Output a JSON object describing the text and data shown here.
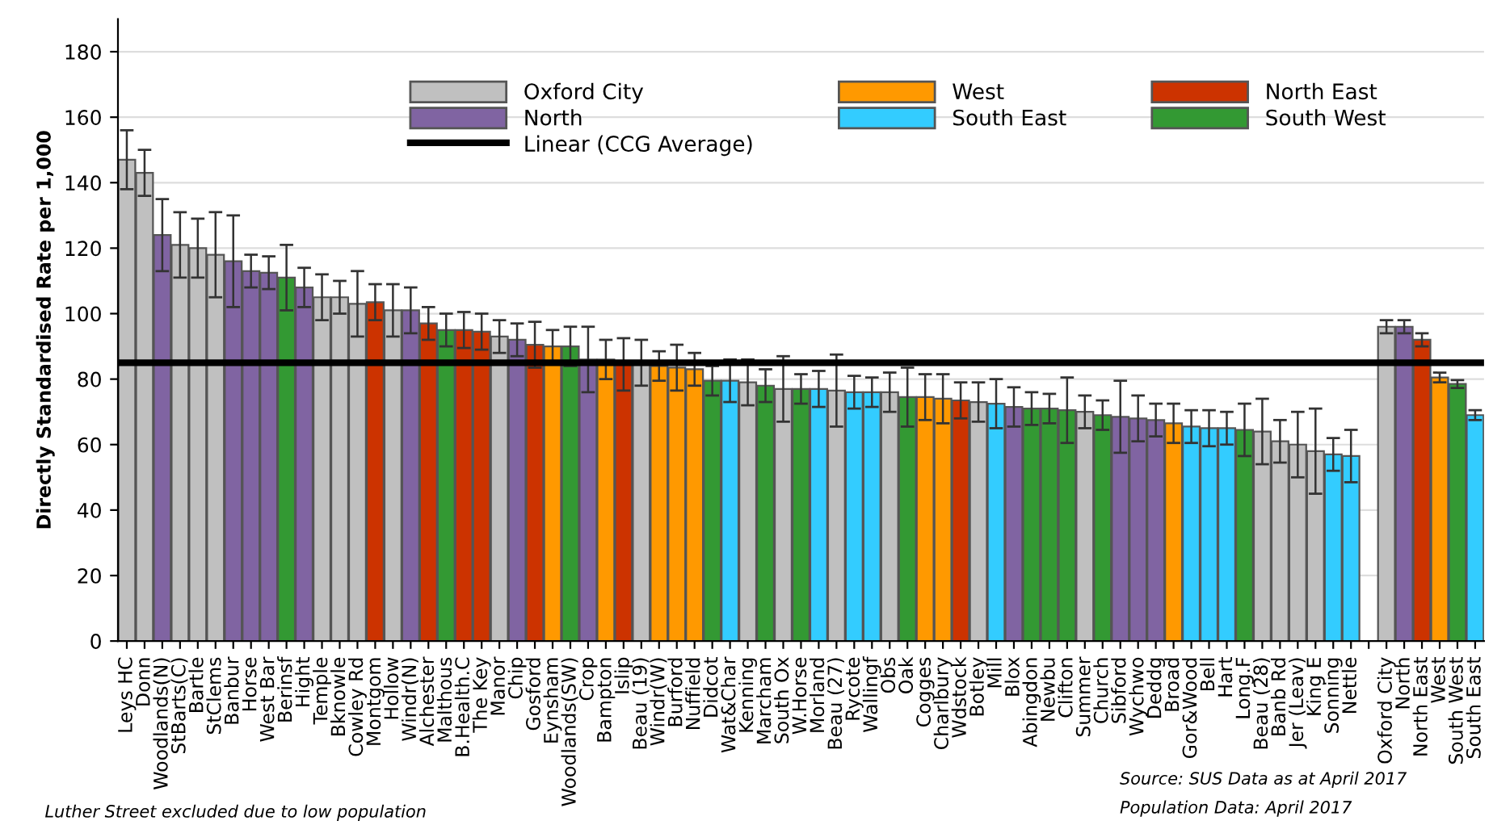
{
  "chart_data": {
    "type": "bar",
    "ylabel": "Directly Standardised Rate per 1,000",
    "categories": [
      "Leys HC",
      "Donn",
      "Woodlands(N)",
      "StBarts(C)",
      "Bartle",
      "StClems",
      "Banbur",
      "Horse",
      "West Bar",
      "Berinsf",
      "Hight",
      "Temple",
      "Bknowle",
      "Cowley Rd",
      "Montgom",
      "Hollow",
      "Windr(N)",
      "Alchester",
      "Malthous",
      "B.Health.C",
      "The Key",
      "Manor",
      "Chip",
      "Gosford",
      "Eynsham",
      "Woodlands(SW)",
      "Crop",
      "Bampton",
      "Islip",
      "Beau (19)",
      "Windr(W)",
      "Burford",
      "Nuffield",
      "Didcot",
      "Wat&Char",
      "Kenning",
      "Marcham",
      "South Ox",
      "W.Horse",
      "Morland",
      "Beau (27)",
      "Rycote",
      "Wallingf",
      "Obs",
      "Oak",
      "Cogges",
      "Charlbury",
      "Wdstock",
      "Botley",
      "Mill",
      "Blox",
      "Abingdon",
      "Newbu",
      "Clifton",
      "Summer",
      "Church",
      "Sibford",
      "Wychwo",
      "Deddg",
      "Broad",
      "Gor&Wood",
      "Bell",
      "Hart",
      "Long.F",
      "Beau (28)",
      "Banb Rd",
      "Jer (Leav)",
      "King E",
      "Sonning",
      "Nettle",
      null,
      "Oxford City",
      "North",
      "North East",
      "West",
      "South West",
      "South East"
    ],
    "series": [
      {
        "name": "Oxford City",
        "color": "#c0c0c0",
        "values": [
          147,
          143,
          null,
          121,
          120,
          118,
          null,
          null,
          null,
          null,
          null,
          105,
          105,
          103,
          null,
          101,
          null,
          null,
          null,
          null,
          null,
          93,
          null,
          null,
          null,
          null,
          null,
          null,
          null,
          85,
          null,
          null,
          null,
          null,
          null,
          79,
          null,
          77,
          null,
          null,
          76.5,
          null,
          null,
          76,
          null,
          null,
          null,
          null,
          73,
          null,
          null,
          null,
          null,
          null,
          70,
          null,
          null,
          null,
          null,
          null,
          null,
          null,
          null,
          null,
          64,
          61,
          60,
          58,
          null,
          null,
          null,
          96,
          null,
          null,
          null,
          null,
          null
        ],
        "errors": [
          9,
          7,
          null,
          10,
          9,
          13,
          null,
          null,
          null,
          null,
          null,
          7,
          5,
          10,
          null,
          8,
          null,
          null,
          null,
          null,
          null,
          5,
          null,
          null,
          null,
          null,
          null,
          null,
          null,
          7,
          null,
          null,
          null,
          null,
          null,
          7,
          null,
          10,
          null,
          null,
          11,
          null,
          null,
          6,
          null,
          null,
          null,
          null,
          6,
          null,
          null,
          null,
          null,
          null,
          5,
          null,
          null,
          null,
          null,
          null,
          null,
          null,
          null,
          null,
          10,
          6.5,
          10,
          13,
          null,
          null,
          null,
          2,
          null,
          null,
          null,
          null,
          null
        ]
      },
      {
        "name": "West",
        "color": "#ff9900",
        "values": [
          null,
          null,
          null,
          null,
          null,
          null,
          null,
          null,
          null,
          null,
          null,
          null,
          null,
          null,
          null,
          null,
          null,
          null,
          null,
          null,
          null,
          null,
          null,
          null,
          90,
          null,
          null,
          86,
          null,
          null,
          84,
          83.5,
          83,
          null,
          null,
          null,
          null,
          null,
          null,
          null,
          null,
          null,
          null,
          null,
          null,
          74.5,
          74,
          null,
          null,
          null,
          null,
          null,
          null,
          null,
          null,
          null,
          null,
          null,
          null,
          66.5,
          null,
          null,
          null,
          null,
          null,
          null,
          null,
          null,
          null,
          null,
          null,
          null,
          null,
          null,
          80.5,
          null,
          null
        ],
        "errors": [
          null,
          null,
          null,
          null,
          null,
          null,
          null,
          null,
          null,
          null,
          null,
          null,
          null,
          null,
          null,
          null,
          null,
          null,
          null,
          null,
          null,
          null,
          null,
          null,
          5,
          null,
          null,
          6,
          null,
          null,
          4.5,
          7,
          5,
          null,
          null,
          null,
          null,
          null,
          null,
          null,
          null,
          null,
          null,
          null,
          null,
          7,
          7.5,
          null,
          null,
          null,
          null,
          null,
          null,
          null,
          null,
          null,
          null,
          null,
          null,
          6,
          null,
          null,
          null,
          null,
          null,
          null,
          null,
          null,
          null,
          null,
          null,
          null,
          null,
          null,
          1.5,
          null,
          null
        ]
      },
      {
        "name": "North East",
        "color": "#cc3300",
        "values": [
          null,
          null,
          null,
          null,
          null,
          null,
          null,
          null,
          null,
          null,
          null,
          null,
          null,
          null,
          103.5,
          null,
          null,
          97,
          null,
          95,
          94.5,
          null,
          null,
          90.5,
          null,
          null,
          null,
          null,
          84.5,
          null,
          null,
          null,
          null,
          null,
          null,
          null,
          null,
          null,
          null,
          null,
          null,
          null,
          null,
          null,
          null,
          null,
          null,
          73.5,
          null,
          null,
          null,
          null,
          null,
          null,
          null,
          null,
          null,
          null,
          null,
          null,
          null,
          null,
          null,
          null,
          null,
          null,
          null,
          null,
          null,
          null,
          null,
          null,
          null,
          92,
          null,
          null,
          null
        ],
        "errors": [
          null,
          null,
          null,
          null,
          null,
          null,
          null,
          null,
          null,
          null,
          null,
          null,
          null,
          null,
          5.5,
          null,
          null,
          5,
          null,
          5.5,
          5.5,
          null,
          null,
          7,
          null,
          null,
          null,
          null,
          8,
          null,
          null,
          null,
          null,
          null,
          null,
          null,
          null,
          null,
          null,
          null,
          null,
          null,
          null,
          null,
          null,
          null,
          null,
          5.5,
          null,
          null,
          null,
          null,
          null,
          null,
          null,
          null,
          null,
          null,
          null,
          null,
          null,
          null,
          null,
          null,
          null,
          null,
          null,
          null,
          null,
          null,
          null,
          null,
          null,
          2,
          null,
          null,
          null
        ]
      },
      {
        "name": "North",
        "color": "#8064a2",
        "values": [
          null,
          null,
          124,
          null,
          null,
          null,
          116,
          113,
          112.5,
          null,
          108,
          null,
          null,
          null,
          null,
          null,
          101,
          null,
          null,
          null,
          null,
          null,
          92,
          null,
          null,
          null,
          86,
          null,
          null,
          null,
          null,
          null,
          null,
          null,
          null,
          null,
          null,
          null,
          null,
          null,
          null,
          null,
          null,
          null,
          null,
          null,
          null,
          null,
          null,
          null,
          71.5,
          null,
          null,
          null,
          null,
          null,
          68.5,
          68,
          67.5,
          null,
          null,
          null,
          null,
          null,
          null,
          null,
          null,
          null,
          null,
          null,
          null,
          null,
          96,
          null,
          null,
          null,
          null
        ],
        "errors": [
          null,
          null,
          11,
          null,
          null,
          null,
          14,
          5,
          5,
          null,
          6,
          null,
          null,
          null,
          null,
          null,
          7,
          null,
          null,
          null,
          null,
          null,
          5,
          null,
          null,
          null,
          10,
          null,
          null,
          null,
          null,
          null,
          null,
          null,
          null,
          null,
          null,
          null,
          null,
          null,
          null,
          null,
          null,
          null,
          null,
          null,
          null,
          null,
          null,
          null,
          6,
          null,
          null,
          null,
          null,
          null,
          11,
          7,
          5,
          null,
          null,
          null,
          null,
          null,
          null,
          null,
          null,
          null,
          null,
          null,
          null,
          null,
          2,
          null,
          null,
          null,
          null
        ]
      },
      {
        "name": "South East",
        "color": "#33ccff",
        "values": [
          null,
          null,
          null,
          null,
          null,
          null,
          null,
          null,
          null,
          null,
          null,
          null,
          null,
          null,
          null,
          null,
          null,
          null,
          null,
          null,
          null,
          null,
          null,
          null,
          null,
          null,
          null,
          null,
          null,
          null,
          null,
          null,
          null,
          null,
          79.5,
          null,
          null,
          null,
          null,
          77,
          null,
          76,
          76,
          null,
          null,
          null,
          null,
          null,
          null,
          72.5,
          null,
          null,
          null,
          null,
          null,
          null,
          null,
          null,
          null,
          null,
          65.5,
          65,
          65,
          null,
          null,
          null,
          null,
          null,
          57,
          56.5,
          null,
          null,
          null,
          null,
          null,
          null,
          69
        ],
        "errors": [
          null,
          null,
          null,
          null,
          null,
          null,
          null,
          null,
          null,
          null,
          null,
          null,
          null,
          null,
          null,
          null,
          null,
          null,
          null,
          null,
          null,
          null,
          null,
          null,
          null,
          null,
          null,
          null,
          null,
          null,
          null,
          null,
          null,
          null,
          6.5,
          null,
          null,
          null,
          null,
          5.5,
          null,
          5,
          4.5,
          null,
          null,
          null,
          null,
          null,
          null,
          7.5,
          null,
          null,
          null,
          null,
          null,
          null,
          null,
          null,
          null,
          null,
          5,
          5.5,
          5,
          null,
          null,
          null,
          null,
          null,
          5,
          8,
          null,
          null,
          null,
          null,
          null,
          null,
          1.5
        ]
      },
      {
        "name": "South West",
        "color": "#339933",
        "values": [
          null,
          null,
          null,
          null,
          null,
          null,
          null,
          null,
          null,
          111,
          null,
          null,
          null,
          null,
          null,
          null,
          null,
          null,
          95,
          null,
          null,
          null,
          null,
          null,
          null,
          90,
          null,
          null,
          null,
          null,
          null,
          null,
          null,
          79.5,
          null,
          null,
          78,
          null,
          77,
          null,
          null,
          null,
          null,
          null,
          74.5,
          null,
          null,
          null,
          null,
          null,
          null,
          71,
          71,
          70.5,
          null,
          69,
          null,
          null,
          null,
          null,
          null,
          null,
          null,
          64.5,
          null,
          null,
          null,
          null,
          null,
          null,
          null,
          null,
          null,
          null,
          null,
          78.5,
          null
        ],
        "errors": [
          null,
          null,
          null,
          null,
          null,
          null,
          null,
          null,
          null,
          10,
          null,
          null,
          null,
          null,
          null,
          null,
          null,
          null,
          5,
          null,
          null,
          null,
          null,
          null,
          null,
          6,
          null,
          null,
          null,
          null,
          null,
          null,
          null,
          4.5,
          null,
          null,
          5,
          null,
          4.5,
          null,
          null,
          null,
          null,
          null,
          9,
          null,
          null,
          null,
          null,
          null,
          null,
          5,
          4.5,
          10,
          null,
          4.5,
          null,
          null,
          null,
          null,
          null,
          null,
          null,
          8,
          null,
          null,
          null,
          null,
          null,
          null,
          null,
          null,
          null,
          null,
          null,
          1.2,
          null
        ]
      }
    ],
    "ref_lines": [
      {
        "axis": "y",
        "value": 85,
        "label": "Linear (CCG Average)",
        "color": "#000000"
      }
    ],
    "ylim": [
      0,
      190
    ],
    "yticks": [
      0,
      20,
      40,
      60,
      80,
      100,
      120,
      140,
      160,
      180
    ],
    "grid": "y",
    "legend": "top",
    "annotations": [
      "Luther Street excluded due to low population",
      "Source: SUS Data as at April 2017",
      "Population Data: April 2017"
    ]
  }
}
